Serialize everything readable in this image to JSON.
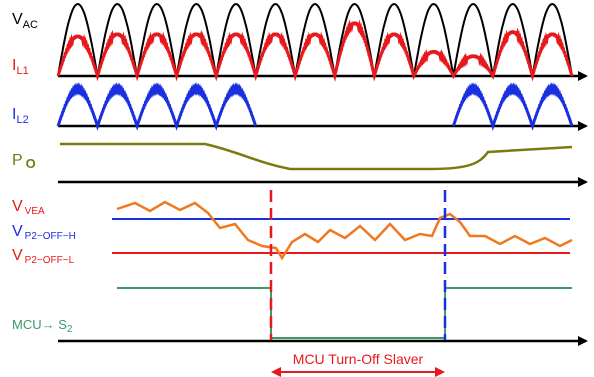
{
  "labels": {
    "vac_main": "V",
    "vac_sub": "AC",
    "il1_main": "I",
    "il1_sub": "L1",
    "il2_main": "I",
    "il2_sub": "L2",
    "po_main": "P",
    "po_sub": "O",
    "vvea_main": "V",
    "vvea_sub": "VEA",
    "vp2h_main": "V",
    "vp2h_sub": "P2−OFF−H",
    "vp2l_main": "V",
    "vp2l_sub": "P2−OFF−L",
    "mcu_main": "MCU→ S",
    "mcu_sub": "2",
    "turnoff": "MCU Turn-Off Slaver"
  },
  "colors": {
    "black": "#000000",
    "red": "#e8191c",
    "blue": "#1a2fe0",
    "olive": "#7a7a10",
    "orange": "#f07820",
    "green": "#3a9a6a",
    "vac_label": "#000000",
    "il1_label": "#e8191c",
    "il2_label": "#1a2fe0",
    "po_label": "#7a7a10",
    "vvea_label": "#e8191c",
    "vp2h_label": "#1a2fe0",
    "vp2l_label": "#e8191c",
    "mcu_label": "#3a9a6a",
    "turnoff_label": "#e8191c"
  },
  "waveforms": {
    "num_half_cycles": 13,
    "il1_peaks": [
      0.9,
      0.95,
      0.95,
      0.95,
      0.95,
      0.95,
      0.95,
      1.2,
      0.95,
      0.55,
      0.45,
      1.0,
      0.95
    ],
    "il2_active": [
      true,
      true,
      true,
      true,
      true,
      false,
      false,
      false,
      false,
      false,
      true,
      true,
      true
    ]
  }
}
